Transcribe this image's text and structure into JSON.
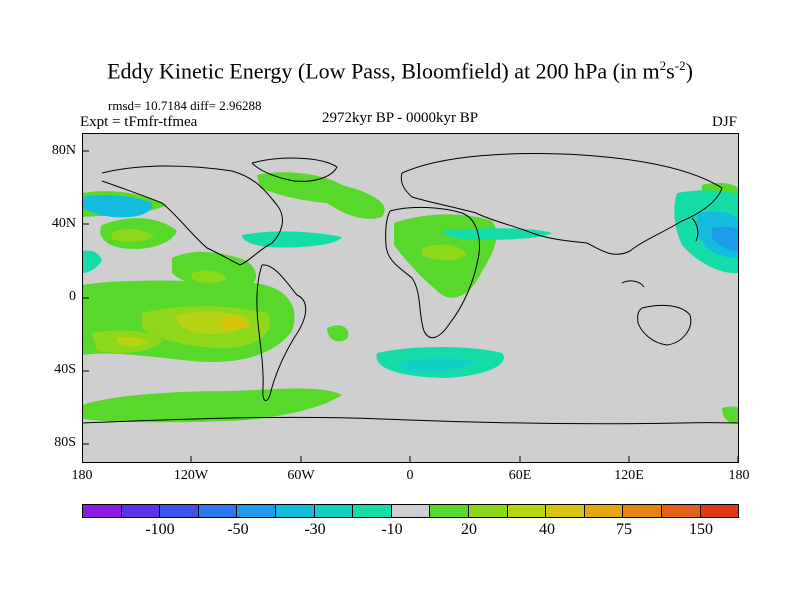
{
  "title_main": "Eddy Kinetic Energy (Low Pass, Bloomfield) at 200 hPa (in m",
  "title_sup1": "2",
  "title_mid": "s",
  "title_sup2": "-2",
  "title_end": ")",
  "stats": "rmsd= 10.7184 diff= 2.96288",
  "expt": "Expt = tFmfr-tfmea",
  "period": "2972kyr BP - 0000kyr BP",
  "season": "DJF",
  "lat_labels": [
    "80N",
    "40N",
    "0",
    "40S",
    "80S"
  ],
  "lon_labels": [
    "180",
    "120W",
    "60W",
    "0",
    "60E",
    "120E",
    "180"
  ],
  "colorbar": {
    "colors": [
      "#8a1ee0",
      "#5a34e8",
      "#3a56ea",
      "#2a7aec",
      "#1e9cea",
      "#14bce0",
      "#12cfc8",
      "#14dca8",
      "#cfcfcf",
      "#58d82a",
      "#8ed81c",
      "#b8d214",
      "#d8c40c",
      "#e4a80c",
      "#e68412",
      "#e46018",
      "#e03a14"
    ],
    "labels": [
      "-100",
      "-50",
      "-30",
      "-10",
      "20",
      "40",
      "75",
      "150"
    ]
  },
  "land_color": "#cfcfcf"
}
